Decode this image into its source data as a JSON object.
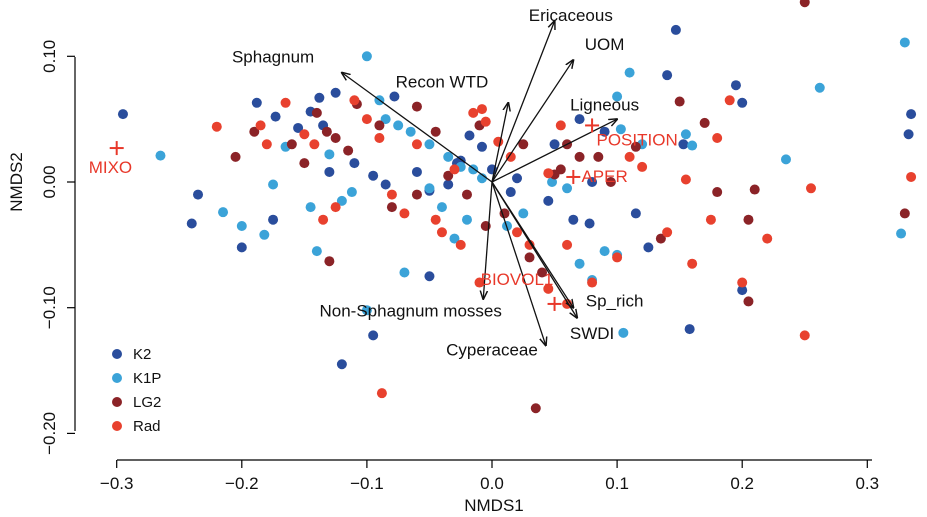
{
  "chart_data": {
    "type": "scatter",
    "xlabel": "NMDS1",
    "ylabel": "NMDS2",
    "xlim": [
      -0.34,
      0.34
    ],
    "ylim": [
      -0.22,
      0.145
    ],
    "xticks": [
      -0.3,
      -0.2,
      -0.1,
      0.0,
      0.1,
      0.2,
      0.3
    ],
    "xtick_labels": [
      "−0.3",
      "−0.2",
      "−0.1",
      "0.0",
      "0.1",
      "0.2",
      "0.3"
    ],
    "yticks": [
      -0.2,
      -0.1,
      0.0,
      0.1
    ],
    "ytick_labels": [
      "−0.20",
      "−0.10",
      "0.00",
      "0.10"
    ],
    "legend_position": "bottom-left",
    "colors": {
      "K2": "#2a4d9c",
      "K1P": "#3ba3d8",
      "LG2": "#8b2327",
      "Rad": "#e8412e",
      "arrow": "#111111",
      "env": "#e8382a"
    },
    "series": [
      {
        "name": "K2",
        "points": [
          [
            -0.295,
            0.054
          ],
          [
            -0.235,
            -0.01
          ],
          [
            -0.24,
            -0.033
          ],
          [
            -0.2,
            -0.052
          ],
          [
            -0.188,
            0.063
          ],
          [
            -0.173,
            0.052
          ],
          [
            -0.155,
            0.043
          ],
          [
            -0.145,
            0.056
          ],
          [
            -0.138,
            0.067
          ],
          [
            -0.125,
            0.071
          ],
          [
            -0.135,
            0.045
          ],
          [
            -0.13,
            0.008
          ],
          [
            -0.11,
            0.015
          ],
          [
            -0.095,
            0.005
          ],
          [
            -0.085,
            -0.002
          ],
          [
            -0.078,
            0.068
          ],
          [
            -0.06,
            0.008
          ],
          [
            -0.05,
            -0.007
          ],
          [
            -0.035,
            -0.002
          ],
          [
            -0.028,
            0.015
          ],
          [
            -0.018,
            0.037
          ],
          [
            -0.008,
            0.028
          ],
          [
            0.0,
            0.01
          ],
          [
            0.015,
            -0.008
          ],
          [
            0.02,
            0.003
          ],
          [
            0.045,
            -0.015
          ],
          [
            0.05,
            0.03
          ],
          [
            0.07,
            0.05
          ],
          [
            0.065,
            -0.03
          ],
          [
            0.09,
            0.04
          ],
          [
            0.115,
            -0.025
          ],
          [
            0.125,
            -0.052
          ],
          [
            0.14,
            0.085
          ],
          [
            0.147,
            0.121
          ],
          [
            0.153,
            0.03
          ],
          [
            0.158,
            -0.117
          ],
          [
            0.195,
            0.077
          ],
          [
            0.2,
            0.063
          ],
          [
            0.2,
            -0.086
          ],
          [
            0.335,
            0.054
          ],
          [
            0.333,
            0.038
          ],
          [
            -0.12,
            -0.145
          ],
          [
            -0.095,
            -0.122
          ],
          [
            -0.025,
            0.017
          ],
          [
            0.08,
            0.0
          ],
          [
            0.078,
            -0.033
          ],
          [
            -0.05,
            -0.075
          ],
          [
            -0.175,
            -0.03
          ]
        ],
        "color": "#2a4d9c"
      },
      {
        "name": "K1P",
        "points": [
          [
            -0.265,
            0.021
          ],
          [
            -0.215,
            -0.024
          ],
          [
            -0.2,
            -0.035
          ],
          [
            -0.182,
            -0.042
          ],
          [
            -0.175,
            -0.002
          ],
          [
            -0.165,
            0.028
          ],
          [
            -0.145,
            -0.02
          ],
          [
            -0.13,
            0.022
          ],
          [
            -0.12,
            -0.015
          ],
          [
            -0.112,
            -0.008
          ],
          [
            -0.1,
            0.1
          ],
          [
            -0.09,
            0.065
          ],
          [
            -0.085,
            0.05
          ],
          [
            -0.075,
            0.045
          ],
          [
            -0.065,
            0.04
          ],
          [
            -0.05,
            0.03
          ],
          [
            -0.035,
            0.02
          ],
          [
            -0.025,
            0.012
          ],
          [
            -0.015,
            0.01
          ],
          [
            -0.008,
            0.003
          ],
          [
            -0.05,
            -0.005
          ],
          [
            -0.04,
            -0.02
          ],
          [
            -0.03,
            -0.045
          ],
          [
            -0.02,
            -0.03
          ],
          [
            0.012,
            -0.035
          ],
          [
            0.025,
            -0.025
          ],
          [
            0.048,
            0.0
          ],
          [
            0.06,
            -0.005
          ],
          [
            0.07,
            -0.065
          ],
          [
            0.09,
            -0.055
          ],
          [
            0.1,
            0.068
          ],
          [
            0.103,
            0.042
          ],
          [
            0.11,
            0.087
          ],
          [
            0.12,
            0.03
          ],
          [
            0.155,
            0.038
          ],
          [
            0.16,
            0.029
          ],
          [
            0.235,
            0.018
          ],
          [
            0.262,
            0.075
          ],
          [
            0.33,
            0.111
          ],
          [
            0.327,
            -0.041
          ],
          [
            -0.1,
            -0.102
          ],
          [
            -0.14,
            -0.055
          ],
          [
            0.1,
            -0.058
          ],
          [
            0.105,
            -0.12
          ],
          [
            -0.07,
            -0.072
          ],
          [
            0.08,
            -0.078
          ]
        ],
        "color": "#3ba3d8"
      },
      {
        "name": "LG2",
        "points": [
          [
            -0.205,
            0.02
          ],
          [
            -0.19,
            0.04
          ],
          [
            -0.16,
            0.03
          ],
          [
            -0.15,
            0.015
          ],
          [
            -0.14,
            0.055
          ],
          [
            -0.132,
            0.04
          ],
          [
            -0.125,
            0.035
          ],
          [
            -0.115,
            0.025
          ],
          [
            -0.108,
            0.062
          ],
          [
            -0.09,
            0.045
          ],
          [
            -0.08,
            -0.02
          ],
          [
            -0.06,
            -0.01
          ],
          [
            -0.045,
            0.04
          ],
          [
            -0.035,
            0.005
          ],
          [
            -0.02,
            -0.01
          ],
          [
            -0.01,
            0.045
          ],
          [
            -0.005,
            -0.035
          ],
          [
            0.01,
            -0.025
          ],
          [
            0.025,
            0.03
          ],
          [
            0.03,
            -0.06
          ],
          [
            0.04,
            -0.072
          ],
          [
            0.055,
            0.01
          ],
          [
            0.06,
            0.03
          ],
          [
            0.07,
            0.02
          ],
          [
            0.085,
            0.02
          ],
          [
            0.095,
            0.0
          ],
          [
            0.115,
            0.028
          ],
          [
            0.135,
            -0.045
          ],
          [
            0.15,
            0.064
          ],
          [
            0.17,
            0.047
          ],
          [
            0.18,
            -0.008
          ],
          [
            0.205,
            -0.03
          ],
          [
            0.21,
            -0.006
          ],
          [
            0.25,
            0.143
          ],
          [
            0.33,
            -0.025
          ],
          [
            0.205,
            -0.095
          ],
          [
            0.035,
            -0.18
          ],
          [
            -0.13,
            -0.063
          ],
          [
            0.05,
            0.006
          ],
          [
            -0.06,
            0.06
          ]
        ],
        "color": "#8b2327"
      },
      {
        "name": "Rad",
        "points": [
          [
            -0.22,
            0.044
          ],
          [
            -0.185,
            0.045
          ],
          [
            -0.18,
            0.03
          ],
          [
            -0.165,
            0.063
          ],
          [
            -0.15,
            0.038
          ],
          [
            -0.142,
            0.03
          ],
          [
            -0.135,
            -0.03
          ],
          [
            -0.125,
            -0.02
          ],
          [
            -0.11,
            0.065
          ],
          [
            -0.1,
            0.05
          ],
          [
            -0.09,
            0.035
          ],
          [
            -0.08,
            -0.01
          ],
          [
            -0.07,
            -0.025
          ],
          [
            -0.06,
            0.03
          ],
          [
            -0.045,
            -0.03
          ],
          [
            -0.04,
            -0.04
          ],
          [
            -0.03,
            0.01
          ],
          [
            -0.025,
            -0.05
          ],
          [
            -0.015,
            0.055
          ],
          [
            -0.005,
            0.048
          ],
          [
            -0.008,
            0.058
          ],
          [
            0.005,
            0.032
          ],
          [
            0.015,
            0.02
          ],
          [
            0.02,
            -0.04
          ],
          [
            0.03,
            -0.05
          ],
          [
            0.045,
            0.007
          ],
          [
            0.055,
            0.045
          ],
          [
            0.06,
            -0.05
          ],
          [
            0.08,
            -0.08
          ],
          [
            0.1,
            -0.06
          ],
          [
            0.11,
            0.02
          ],
          [
            0.12,
            0.012
          ],
          [
            0.14,
            -0.04
          ],
          [
            0.155,
            0.002
          ],
          [
            0.18,
            0.035
          ],
          [
            0.19,
            0.065
          ],
          [
            0.2,
            -0.08
          ],
          [
            0.22,
            -0.045
          ],
          [
            0.255,
            -0.005
          ],
          [
            0.335,
            0.004
          ],
          [
            0.25,
            -0.122
          ],
          [
            -0.088,
            -0.168
          ],
          [
            0.06,
            -0.097
          ],
          [
            0.16,
            -0.065
          ],
          [
            0.175,
            -0.03
          ],
          [
            -0.01,
            -0.08
          ],
          [
            0.045,
            -0.085
          ]
        ],
        "color": "#e8412e"
      }
    ],
    "arrows": [
      {
        "label": "Ericaceous",
        "end": [
          0.05,
          0.128
        ],
        "label_pos": [
          0.063,
          0.128
        ]
      },
      {
        "label": "UOM",
        "end": [
          0.065,
          0.097
        ],
        "label_pos": [
          0.09,
          0.105
        ]
      },
      {
        "label": "Sphagnum",
        "end": [
          -0.12,
          0.087
        ],
        "label_pos": [
          -0.175,
          0.095
        ]
      },
      {
        "label": "Recon WTD",
        "end": [
          0.013,
          0.063
        ],
        "label_pos": [
          -0.04,
          0.075
        ]
      },
      {
        "label": "Ligneous",
        "end": [
          0.1,
          0.05
        ],
        "label_pos": [
          0.09,
          0.057
        ]
      },
      {
        "label": "Non-Sphagnum mosses",
        "end": [
          -0.007,
          -0.093
        ],
        "label_pos": [
          -0.065,
          -0.107
        ]
      },
      {
        "label": "Cyperaceae",
        "end": [
          0.043,
          -0.13
        ],
        "label_pos": [
          0.0,
          -0.138
        ]
      },
      {
        "label": "Sp_rich",
        "end": [
          0.065,
          -0.1
        ],
        "label_pos": [
          0.098,
          -0.099
        ]
      },
      {
        "label": "SWDI",
        "end": [
          0.068,
          -0.108
        ],
        "label_pos": [
          0.08,
          -0.125
        ]
      }
    ],
    "env_vectors": [
      {
        "label": "MIXO",
        "point": [
          -0.3,
          0.027
        ],
        "label_pos": [
          -0.305,
          0.007
        ]
      },
      {
        "label": "POSITION",
        "point": [
          0.08,
          0.045
        ],
        "label_pos": [
          0.116,
          0.029
        ]
      },
      {
        "label": "APER",
        "point": [
          0.065,
          0.004
        ],
        "label_pos": [
          0.09,
          0.0
        ]
      },
      {
        "label": "BIOVOL1",
        "point": [
          0.05,
          -0.097
        ],
        "label_pos": [
          0.02,
          -0.082
        ]
      }
    ]
  }
}
